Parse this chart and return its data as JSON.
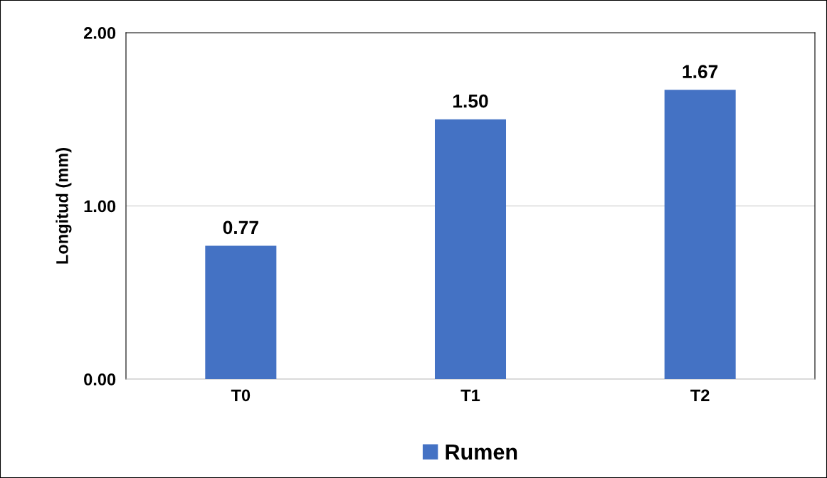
{
  "chart_data": {
    "type": "bar",
    "ylabel": "Longitud (mm)",
    "categories": [
      "T0",
      "T1",
      "T2"
    ],
    "series": [
      {
        "name": "Rumen",
        "color": "#4472c4",
        "values": [
          0.77,
          1.5,
          1.67
        ],
        "value_labels": [
          "0.77",
          "1.50",
          "1.67"
        ]
      }
    ],
    "ylim": [
      0,
      2
    ],
    "yticks": [
      {
        "value": 0,
        "label": "0.00"
      },
      {
        "value": 1,
        "label": "1.00"
      },
      {
        "value": 2,
        "label": "2.00"
      }
    ],
    "grid": "y",
    "legend": "bottom"
  }
}
